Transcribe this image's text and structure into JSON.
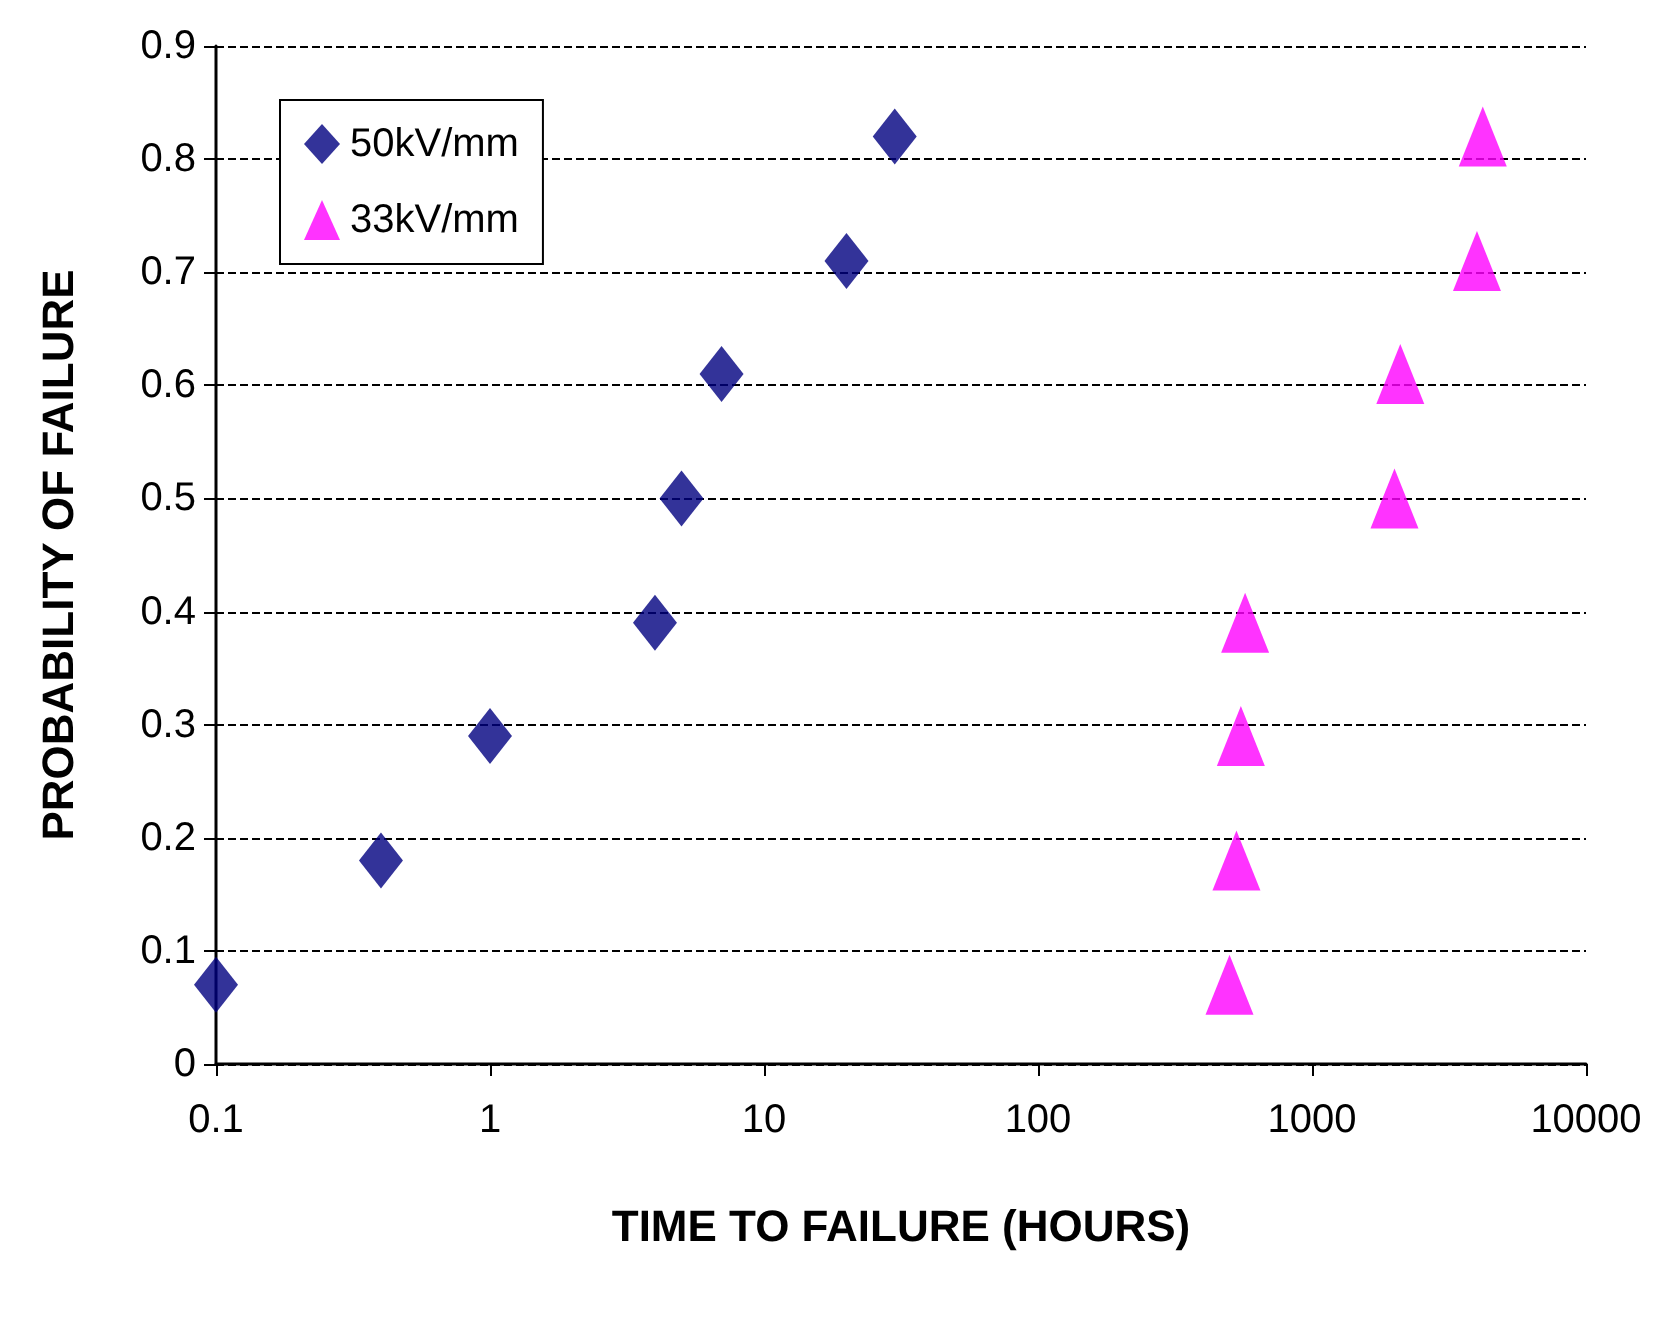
{
  "chart_data": {
    "type": "scatter",
    "xlabel": "TIME TO FAILURE (HOURS)",
    "ylabel": "PROBABILITY OF FAILURE",
    "log": "x",
    "xlim": [
      0.1,
      10000
    ],
    "xticks": [
      0.1,
      1,
      10,
      100,
      1000,
      10000
    ],
    "ylim": [
      0,
      0.9
    ],
    "yticks": [
      0,
      0.1,
      0.2,
      0.3,
      0.4,
      0.5,
      0.6,
      0.7,
      0.8,
      0.9
    ],
    "grid": "y",
    "legend": "top left",
    "series": [
      {
        "name": "50kV/mm",
        "color": "#000080",
        "marker": "diamond",
        "x": [
          0.1,
          0.4,
          1,
          4,
          5,
          7,
          20,
          30
        ],
        "values": [
          0.07,
          0.18,
          0.29,
          0.39,
          0.5,
          0.61,
          0.71,
          0.82
        ]
      },
      {
        "name": "33kV/mm",
        "color": "#ff00ff",
        "marker": "triangle",
        "x": [
          500,
          530,
          550,
          570,
          2000,
          2100,
          4000,
          4200
        ],
        "values": [
          0.07,
          0.18,
          0.29,
          0.39,
          0.5,
          0.61,
          0.71,
          0.82
        ]
      }
    ]
  }
}
